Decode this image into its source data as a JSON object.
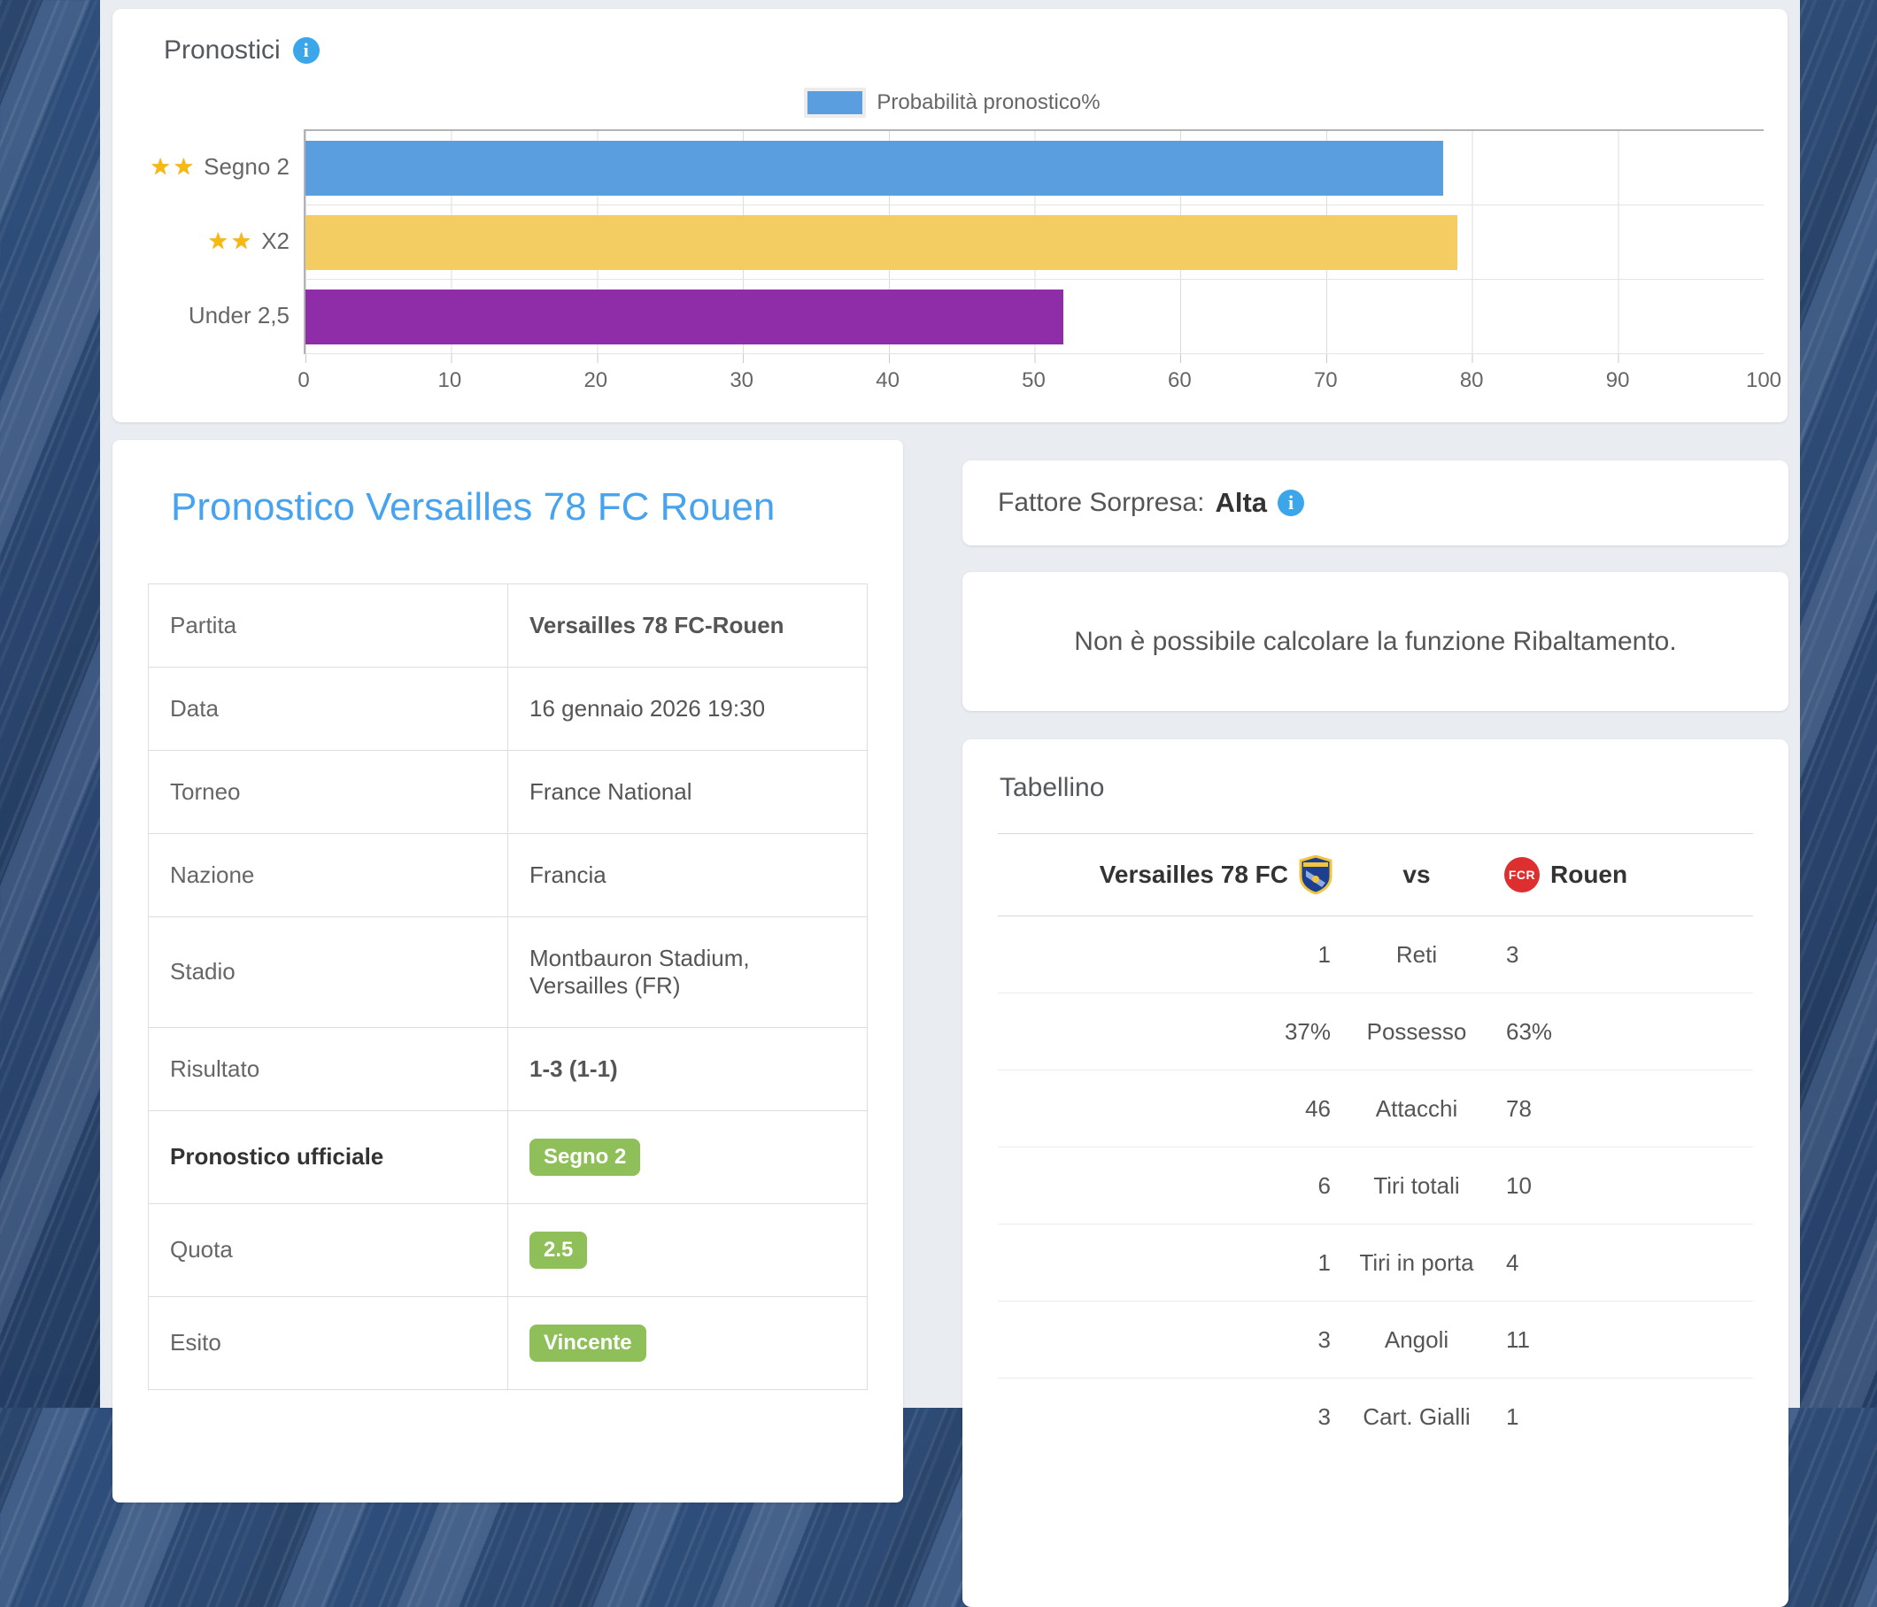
{
  "chart_card": {
    "title": "Pronostici"
  },
  "chart_data": {
    "type": "bar",
    "orientation": "horizontal",
    "title": "Pronostici",
    "legend": "Probabilità pronostico%",
    "legend_position": "top-center",
    "categories": [
      {
        "stars_glyph": "★★",
        "label": "Segno 2"
      },
      {
        "stars_glyph": "★★",
        "label": "X2"
      },
      {
        "stars_glyph": "",
        "label": "Under 2,5"
      }
    ],
    "values": [
      78,
      79,
      52
    ],
    "bar_colors": [
      "#5b9edf",
      "#f3cd62",
      "#8e2da7"
    ],
    "xlim": [
      0,
      100
    ],
    "x_ticks": [
      0,
      10,
      20,
      30,
      40,
      50,
      60,
      70,
      80,
      90,
      100
    ],
    "grid": true
  },
  "prediction_card": {
    "title": "Pronostico Versailles 78 FC Rouen",
    "rows": [
      {
        "label": "Partita",
        "value": "Versailles 78 FC-Rouen"
      },
      {
        "label": "Data",
        "value": "16 gennaio 2026 19:30"
      },
      {
        "label": "Torneo",
        "value": "France National"
      },
      {
        "label": "Nazione",
        "value": "Francia"
      },
      {
        "label": "Stadio",
        "value": "Montbauron Stadium, Versailles (FR)"
      },
      {
        "label": "Risultato",
        "value": "1-3 (1-1)"
      },
      {
        "label": "Pronostico ufficiale",
        "badge": "Segno 2"
      },
      {
        "label": "Quota",
        "badge": "2.5"
      },
      {
        "label": "Esito",
        "badge": "Vincente"
      }
    ]
  },
  "surprise_card": {
    "label": "Fattore Sorpresa:",
    "value": "Alta"
  },
  "notice_card": {
    "text": "Non è possibile calcolare la funzione Ribaltamento."
  },
  "tabellino_card": {
    "title": "Tabellino",
    "home_team": "Versailles 78 FC",
    "vs_label": "vs",
    "away_team": "Rouen",
    "away_logo_text": "FCR",
    "stats": [
      {
        "home": "1",
        "label": "Reti",
        "away": "3"
      },
      {
        "home": "37%",
        "label": "Possesso",
        "away": "63%"
      },
      {
        "home": "46",
        "label": "Attacchi",
        "away": "78"
      },
      {
        "home": "6",
        "label": "Tiri totali",
        "away": "10"
      },
      {
        "home": "1",
        "label": "Tiri in porta",
        "away": "4"
      },
      {
        "home": "3",
        "label": "Angoli",
        "away": "11"
      },
      {
        "home": "3",
        "label": "Cart. Gialli",
        "away": "1"
      }
    ]
  },
  "colors": {
    "accent_blue": "#47a3ee",
    "info_icon_blue": "#3ba7ea",
    "badge_green": "#8ebf58",
    "bar_blue": "#5b9edf",
    "bar_yellow": "#f3cd62",
    "bar_purple": "#8e2da7",
    "home_logo_blue": "#1d3f8f",
    "home_logo_yellow": "#f2c53d",
    "away_logo_red": "#dd2f2f"
  }
}
